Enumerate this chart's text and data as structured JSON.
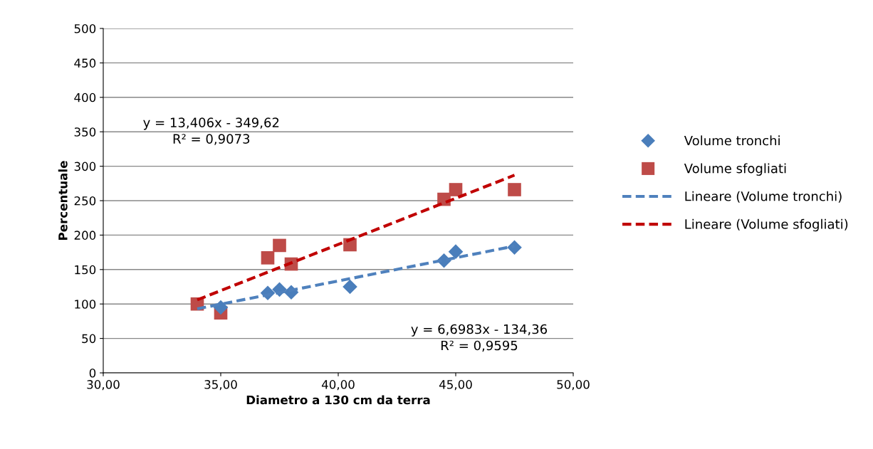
{
  "chart_data": {
    "type": "scatter",
    "xlabel": "Diametro a 130 cm da terra",
    "ylabel": "Percentuale",
    "xlim": [
      30,
      50
    ],
    "xticks": [
      {
        "value": 30,
        "label": "30,00"
      },
      {
        "value": 35,
        "label": "35,00"
      },
      {
        "value": 40,
        "label": "40,00"
      },
      {
        "value": 45,
        "label": "45,00"
      },
      {
        "value": 50,
        "label": "50,00"
      }
    ],
    "ylim": [
      0,
      500
    ],
    "yticks": [
      0,
      50,
      100,
      150,
      200,
      250,
      300,
      350,
      400,
      450,
      500
    ],
    "grid": "y",
    "legend": "right",
    "series": [
      {
        "name": "Volume tronchi",
        "marker": "diamond",
        "color": "#4a7ebb",
        "x": [
          35,
          37,
          37.5,
          38,
          40.5,
          44.5,
          45,
          47.5
        ],
        "values": [
          95,
          116,
          121,
          117,
          125,
          163,
          176,
          182
        ]
      },
      {
        "name": "Volume sfogliati",
        "marker": "square",
        "color": "#be4b48",
        "x": [
          34,
          35,
          37,
          37.5,
          38,
          40.5,
          44.5,
          45,
          47.5
        ],
        "values": [
          100,
          87,
          167,
          185,
          158,
          186,
          252,
          266,
          266
        ]
      },
      {
        "name": "Lineare (Volume tronchi)",
        "type": "line",
        "line_style": "dashed",
        "color": "#4f81bd",
        "x": [
          34,
          47.5
        ],
        "values": [
          93,
          184
        ]
      },
      {
        "name": "Lineare (Volume sfogliati)",
        "type": "line",
        "line_style": "dashed",
        "color": "#c00000",
        "x": [
          34,
          47.5
        ],
        "values": [
          106,
          287
        ]
      }
    ],
    "annotations": [
      "y = 13,406x - 349,62\nR² = 0,9073",
      "y = 6,6983x - 134,36\nR² = 0,9595"
    ]
  }
}
